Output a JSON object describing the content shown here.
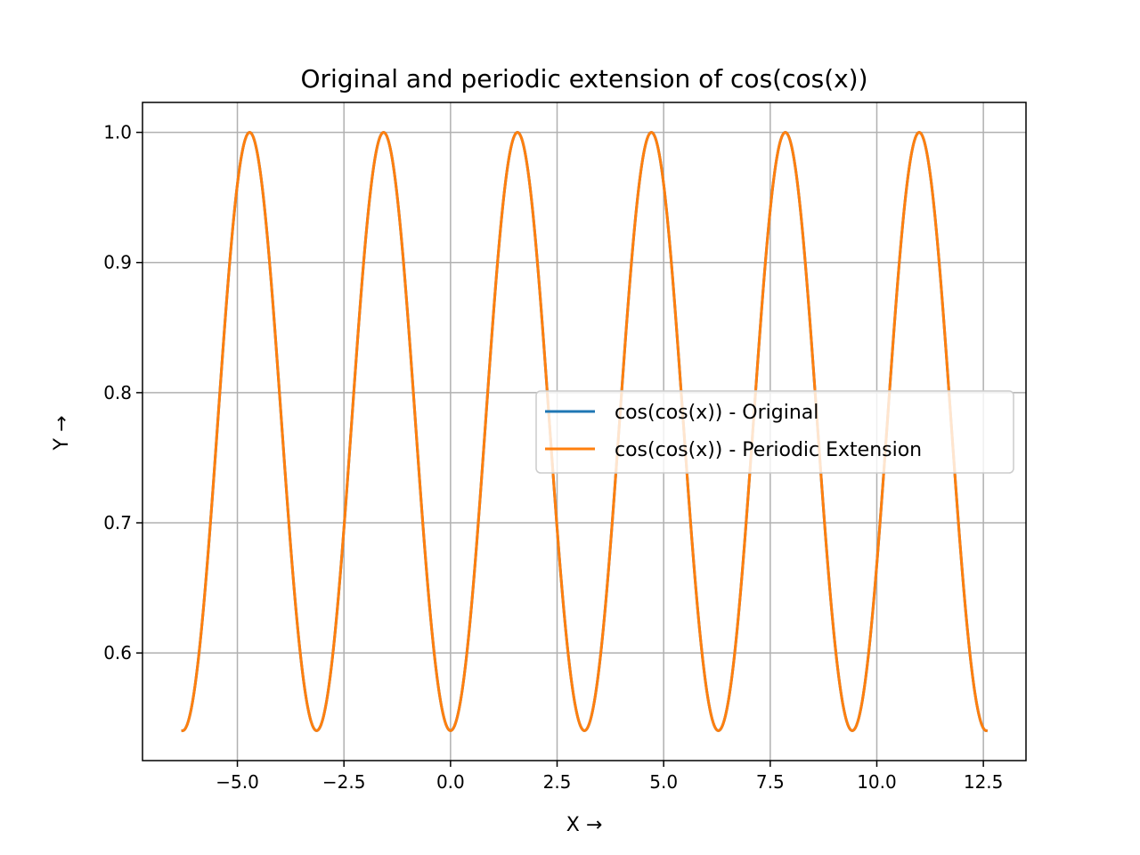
{
  "chart_data": {
    "type": "line",
    "title": "Original and periodic extension of cos(cos(x))",
    "xlabel": "X →",
    "ylabel": "Y →",
    "xlim": [
      -7.226,
      13.5
    ],
    "ylim": [
      0.5173,
      1.023
    ],
    "xticks": [
      -5.0,
      -2.5,
      0.0,
      2.5,
      5.0,
      7.5,
      10.0,
      12.5
    ],
    "xtick_labels": [
      "−5.0",
      "−2.5",
      "0.0",
      "2.5",
      "5.0",
      "7.5",
      "10.0",
      "12.5"
    ],
    "yticks": [
      0.6,
      0.7,
      0.8,
      0.9,
      1.0
    ],
    "ytick_labels": [
      "0.6",
      "0.7",
      "0.8",
      "0.9",
      "1.0"
    ],
    "grid": true,
    "legend_position": "center-right",
    "function": "cos(cos(x))",
    "x_range": [
      -6.2832,
      12.5664
    ],
    "series": [
      {
        "name": "cos(cos(x)) - Original",
        "color": "#1f77b4"
      },
      {
        "name": "cos(cos(x)) - Periodic Extension",
        "color": "#ff7f0e"
      }
    ]
  }
}
